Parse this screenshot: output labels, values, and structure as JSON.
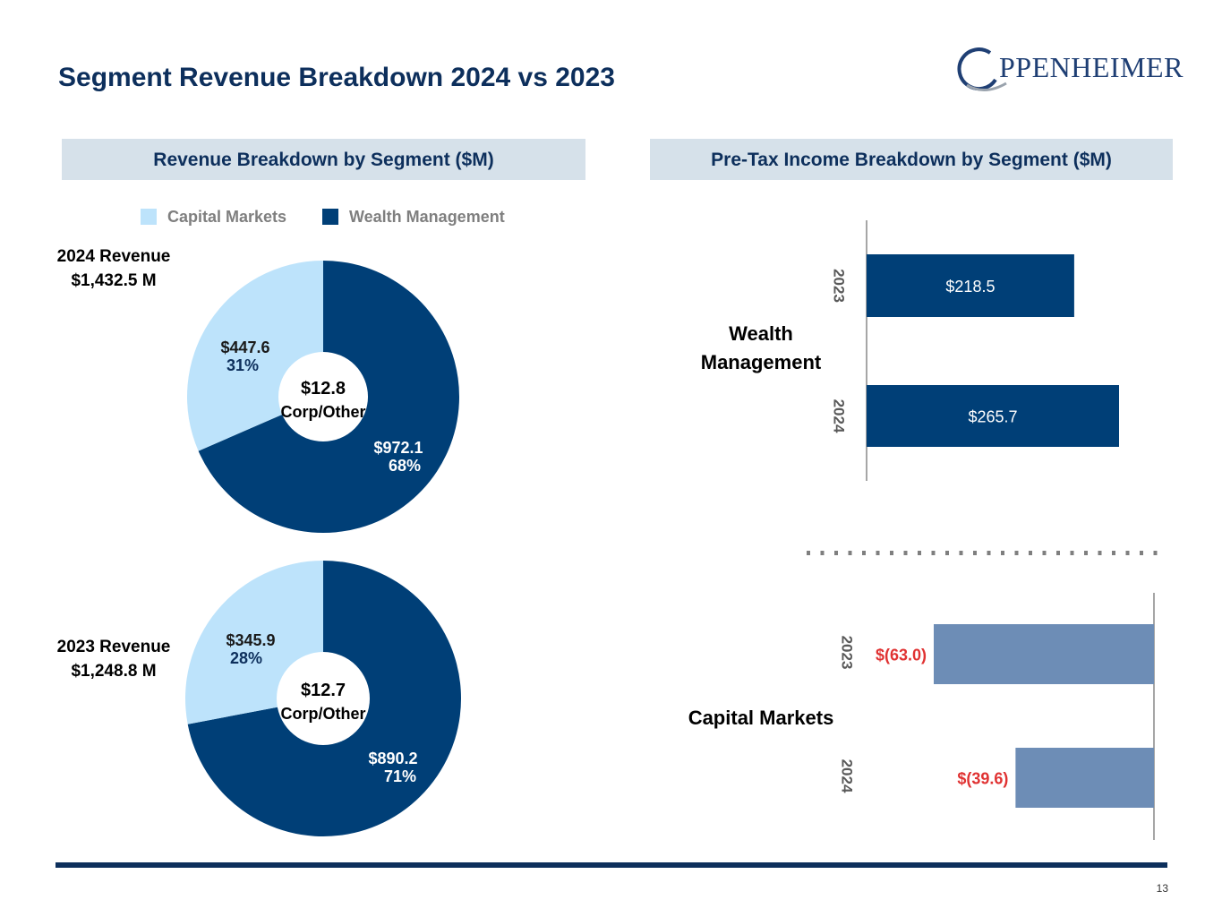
{
  "page": {
    "title": "Segment Revenue Breakdown 2024 vs 2023",
    "page_number": "13",
    "logo_text": "PPENHEIMER"
  },
  "revenue_panel": {
    "header": "Revenue Breakdown by Segment ($M)",
    "legend": [
      {
        "label": "Capital Markets",
        "color": "#bde3fb"
      },
      {
        "label": "Wealth Management",
        "color": "#003f77"
      }
    ],
    "label_2024": [
      "2024 Revenue",
      "$1,432.5 M"
    ],
    "label_2023": [
      "2023 Revenue",
      "$1,248.8 M"
    ]
  },
  "pretax_panel": {
    "header": "Pre-Tax Income Breakdown by Segment ($M)",
    "wealth_label": [
      "Wealth",
      "Management"
    ],
    "capital_label": "Capital Markets"
  },
  "colors": {
    "title": "#0d2f5c",
    "capital_markets": "#bde3fb",
    "wealth_management": "#003f77",
    "capital_bar": "#6d8db6",
    "negative_text": "#e03232",
    "header_bg": "#d6e1ea"
  },
  "chart_data": [
    {
      "type": "pie",
      "variant": "donut",
      "title": "2024 Revenue $1,432.5 M",
      "slices": [
        {
          "name": "Wealth Management",
          "value": 972.1,
          "value_label": "$972.1",
          "pct_label": "68%"
        },
        {
          "name": "Capital Markets",
          "value": 447.6,
          "value_label": "$447.6",
          "pct_label": "31%"
        }
      ],
      "center": {
        "value": "$12.8",
        "label": "Corp/Other"
      }
    },
    {
      "type": "pie",
      "variant": "donut",
      "title": "2023 Revenue $1,248.8 M",
      "slices": [
        {
          "name": "Wealth Management",
          "value": 890.2,
          "value_label": "$890.2",
          "pct_label": "71%"
        },
        {
          "name": "Capital Markets",
          "value": 345.9,
          "value_label": "$345.9",
          "pct_label": "28%"
        }
      ],
      "center": {
        "value": "$12.7",
        "label": "Corp/Other"
      }
    },
    {
      "type": "bar",
      "orientation": "horizontal",
      "title": "Wealth Management",
      "categories": [
        "2023",
        "2024"
      ],
      "values": [
        218.5,
        265.7
      ],
      "value_labels": [
        "$218.5",
        "$265.7"
      ],
      "xlim": [
        0,
        300
      ]
    },
    {
      "type": "bar",
      "orientation": "horizontal",
      "title": "Capital Markets",
      "categories": [
        "2023",
        "2024"
      ],
      "values": [
        -63.0,
        -39.6
      ],
      "value_labels": [
        "$(63.0)",
        "$(39.6)"
      ],
      "xlim": [
        -90,
        0
      ]
    }
  ]
}
